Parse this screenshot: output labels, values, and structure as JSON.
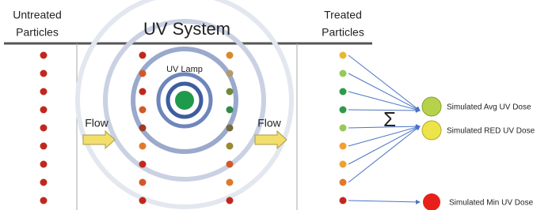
{
  "header": {
    "left": [
      "Untreated",
      "Particles"
    ],
    "title": "UV System",
    "right": [
      "Treated",
      "Particles"
    ]
  },
  "lamp": "UV Lamp",
  "flow": [
    "Flow",
    "Flow"
  ],
  "sum": "Σ",
  "outputs": [
    "Simulated Avg UV Dose",
    "Simulated RED UV Dose",
    "Simulated Min UV Dose"
  ]
}
